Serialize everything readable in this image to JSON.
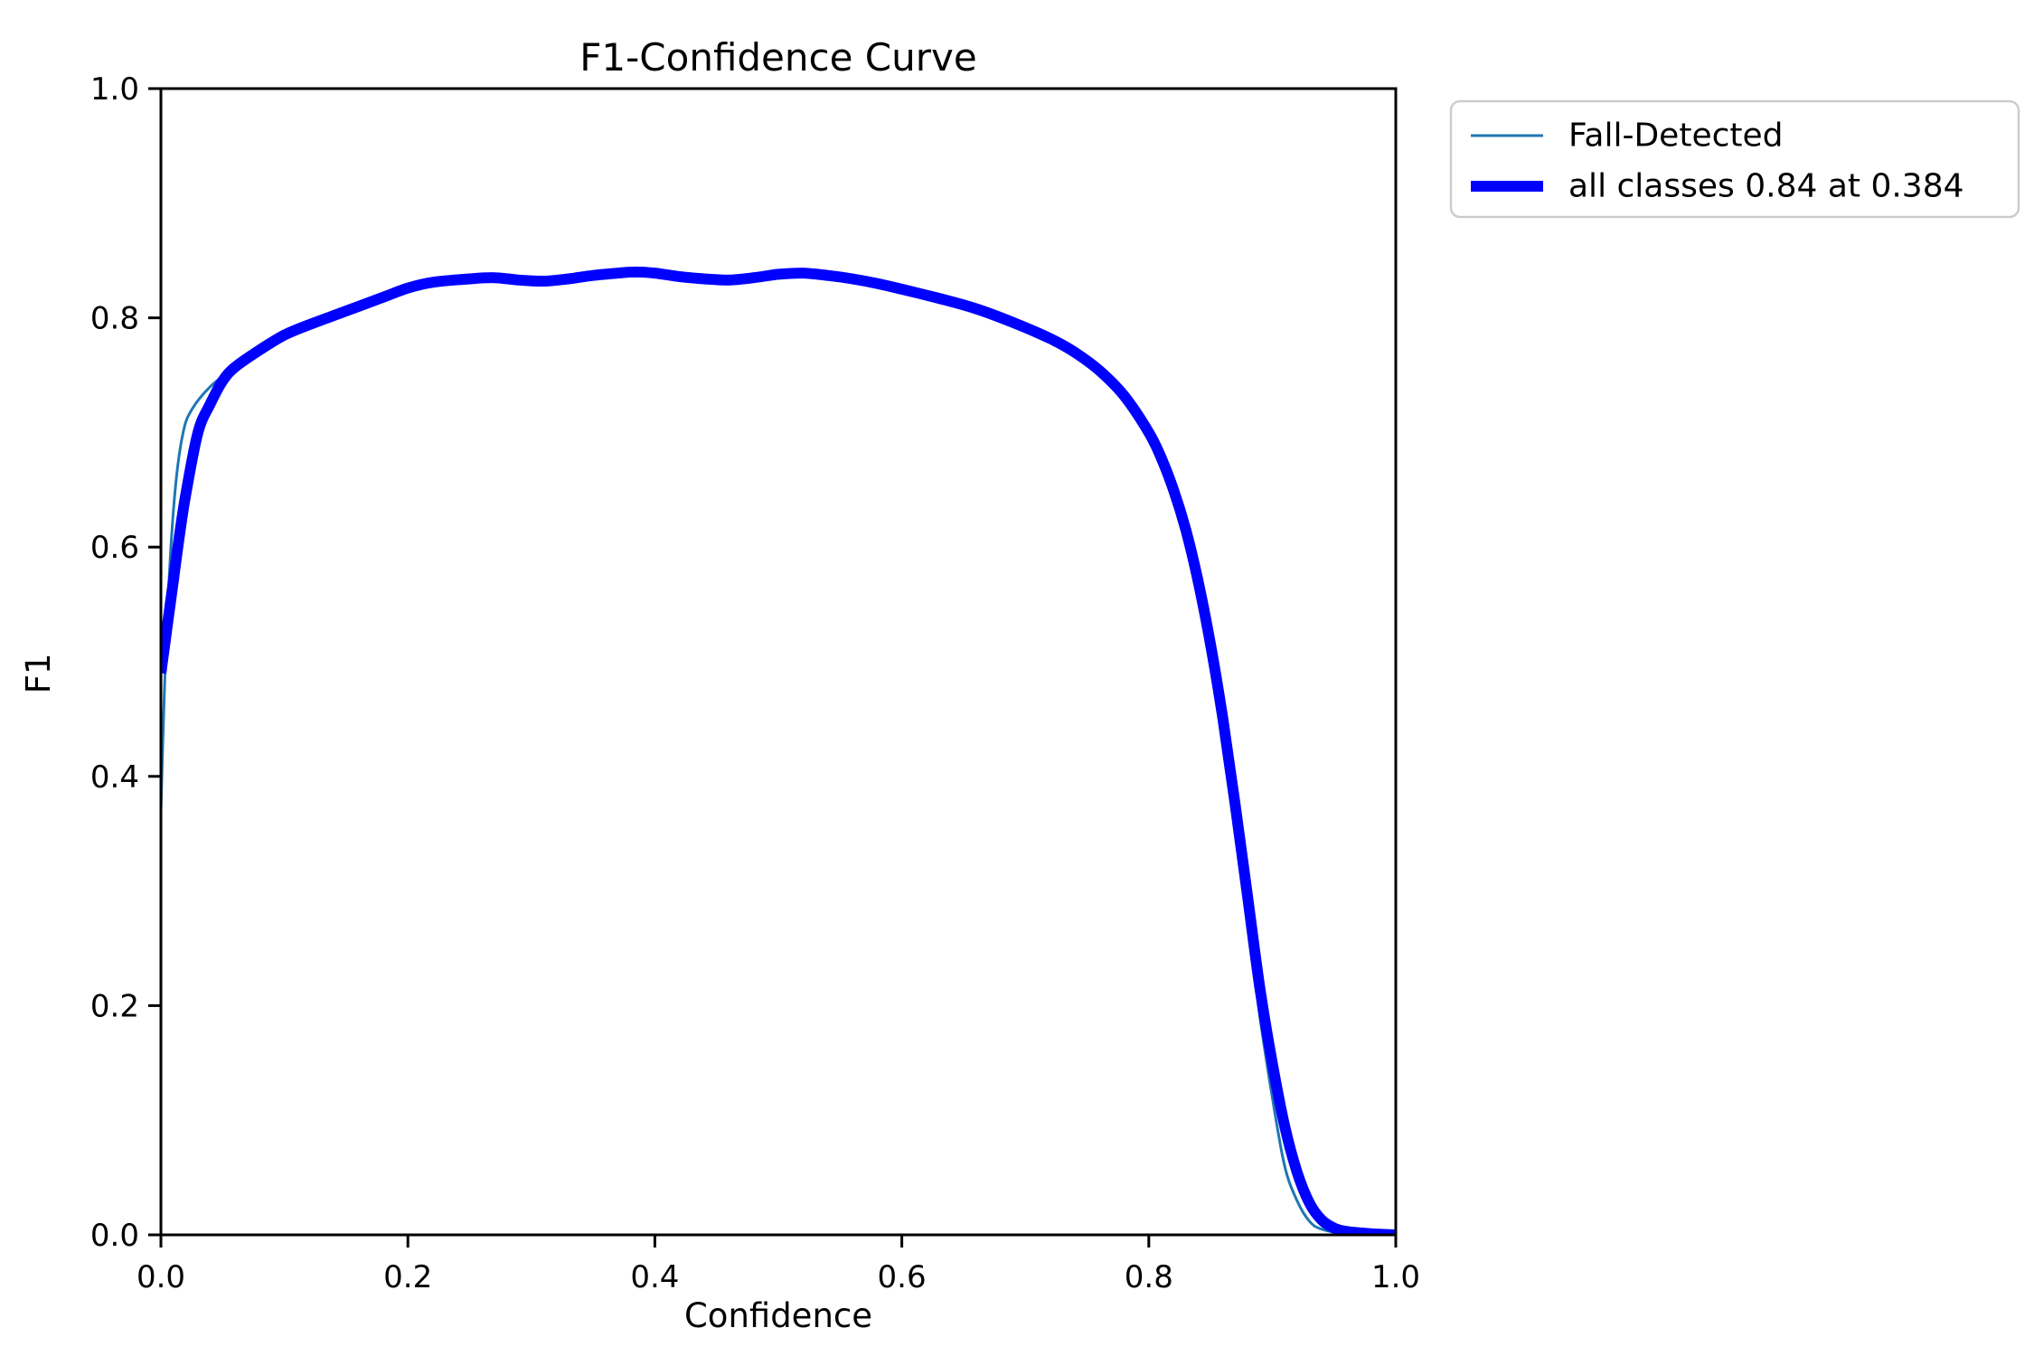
{
  "chart_data": {
    "type": "line",
    "title": "F1-Confidence Curve",
    "xlabel": "Confidence",
    "ylabel": "F1",
    "xlim": [
      0.0,
      1.0
    ],
    "ylim": [
      0.0,
      1.0
    ],
    "x_ticks": [
      "0.0",
      "0.2",
      "0.4",
      "0.6",
      "0.8",
      "1.0"
    ],
    "y_ticks": [
      "0.0",
      "0.2",
      "0.4",
      "0.6",
      "0.8",
      "1.0"
    ],
    "grid": false,
    "legend_position": "outside upper right",
    "peak_annotation": {
      "best_f1": 0.84,
      "best_confidence": 0.384
    },
    "series": [
      {
        "name": "Fall-Detected",
        "color": "#1f77b4",
        "width": 3,
        "x": [
          0.0,
          0.003,
          0.007,
          0.012,
          0.018,
          0.025,
          0.04,
          0.06,
          0.08,
          0.1,
          0.12,
          0.15,
          0.18,
          0.2,
          0.25,
          0.3,
          0.35,
          0.384,
          0.42,
          0.46,
          0.5,
          0.54,
          0.58,
          0.62,
          0.66,
          0.7,
          0.74,
          0.78,
          0.8,
          0.82,
          0.84,
          0.85,
          0.86,
          0.87,
          0.88,
          0.89,
          0.9,
          0.91,
          0.92,
          0.93,
          0.94,
          0.96,
          1.0
        ],
        "y": [
          0.37,
          0.48,
          0.58,
          0.655,
          0.7,
          0.72,
          0.74,
          0.757,
          0.772,
          0.785,
          0.794,
          0.806,
          0.818,
          0.826,
          0.834,
          0.833,
          0.837,
          0.84,
          0.836,
          0.833,
          0.838,
          0.837,
          0.83,
          0.819,
          0.808,
          0.792,
          0.77,
          0.732,
          0.7,
          0.65,
          0.57,
          0.515,
          0.44,
          0.36,
          0.27,
          0.19,
          0.12,
          0.06,
          0.03,
          0.012,
          0.005,
          0.001,
          0.0
        ]
      },
      {
        "name": "all classes 0.84 at 0.384",
        "color": "#0000ff",
        "width": 12,
        "x": [
          0.0,
          0.005,
          0.01,
          0.015,
          0.02,
          0.03,
          0.04,
          0.05,
          0.06,
          0.08,
          0.1,
          0.12,
          0.15,
          0.18,
          0.2,
          0.22,
          0.25,
          0.27,
          0.29,
          0.31,
          0.33,
          0.35,
          0.37,
          0.384,
          0.4,
          0.42,
          0.44,
          0.46,
          0.48,
          0.5,
          0.52,
          0.54,
          0.56,
          0.58,
          0.6,
          0.63,
          0.66,
          0.69,
          0.72,
          0.74,
          0.76,
          0.78,
          0.8,
          0.81,
          0.82,
          0.83,
          0.84,
          0.85,
          0.86,
          0.87,
          0.88,
          0.89,
          0.9,
          0.91,
          0.92,
          0.93,
          0.94,
          0.95,
          0.96,
          0.98,
          1.0
        ],
        "y": [
          0.49,
          0.53,
          0.57,
          0.61,
          0.645,
          0.7,
          0.725,
          0.745,
          0.757,
          0.772,
          0.785,
          0.794,
          0.806,
          0.818,
          0.826,
          0.831,
          0.834,
          0.835,
          0.833,
          0.832,
          0.834,
          0.837,
          0.839,
          0.84,
          0.839,
          0.836,
          0.834,
          0.833,
          0.835,
          0.838,
          0.839,
          0.837,
          0.834,
          0.83,
          0.825,
          0.817,
          0.808,
          0.796,
          0.782,
          0.77,
          0.754,
          0.732,
          0.7,
          0.678,
          0.65,
          0.615,
          0.57,
          0.515,
          0.45,
          0.375,
          0.295,
          0.215,
          0.15,
          0.095,
          0.055,
          0.028,
          0.013,
          0.006,
          0.003,
          0.001,
          0.0
        ]
      }
    ]
  }
}
